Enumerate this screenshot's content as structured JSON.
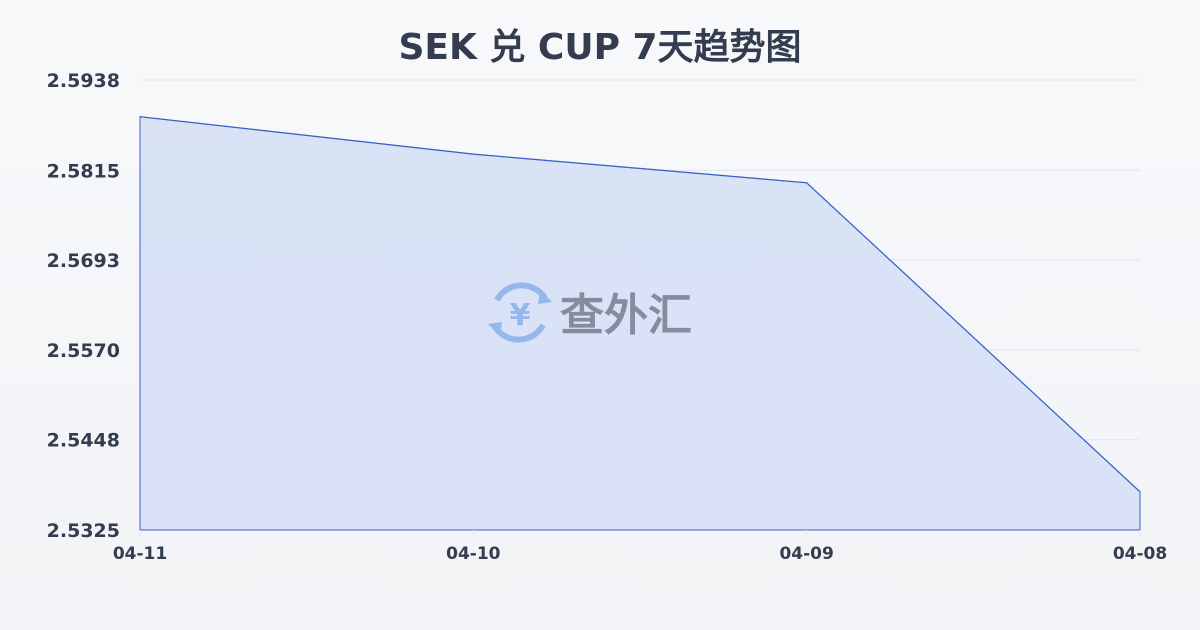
{
  "chart_data": {
    "type": "area",
    "title": "SEK 兑 CUP 7天趋势图",
    "categories": [
      "04-11",
      "04-10",
      "04-09",
      "04-08"
    ],
    "series": [
      {
        "values": [
          2.5888,
          2.5837,
          2.5798,
          2.5377
        ]
      }
    ],
    "yticks": [
      "2.5938",
      "2.5815",
      "2.5693",
      "2.5570",
      "2.5448",
      "2.5325"
    ],
    "ylim": [
      2.5325,
      2.5938
    ],
    "grid": true,
    "colors": {
      "line": "#3b62c9",
      "fill": "#d6e0f5",
      "grid": "#e2e5ea",
      "text": "#333d4f"
    }
  },
  "watermark": {
    "text": "查外汇",
    "icon": "yen-exchange-icon"
  }
}
